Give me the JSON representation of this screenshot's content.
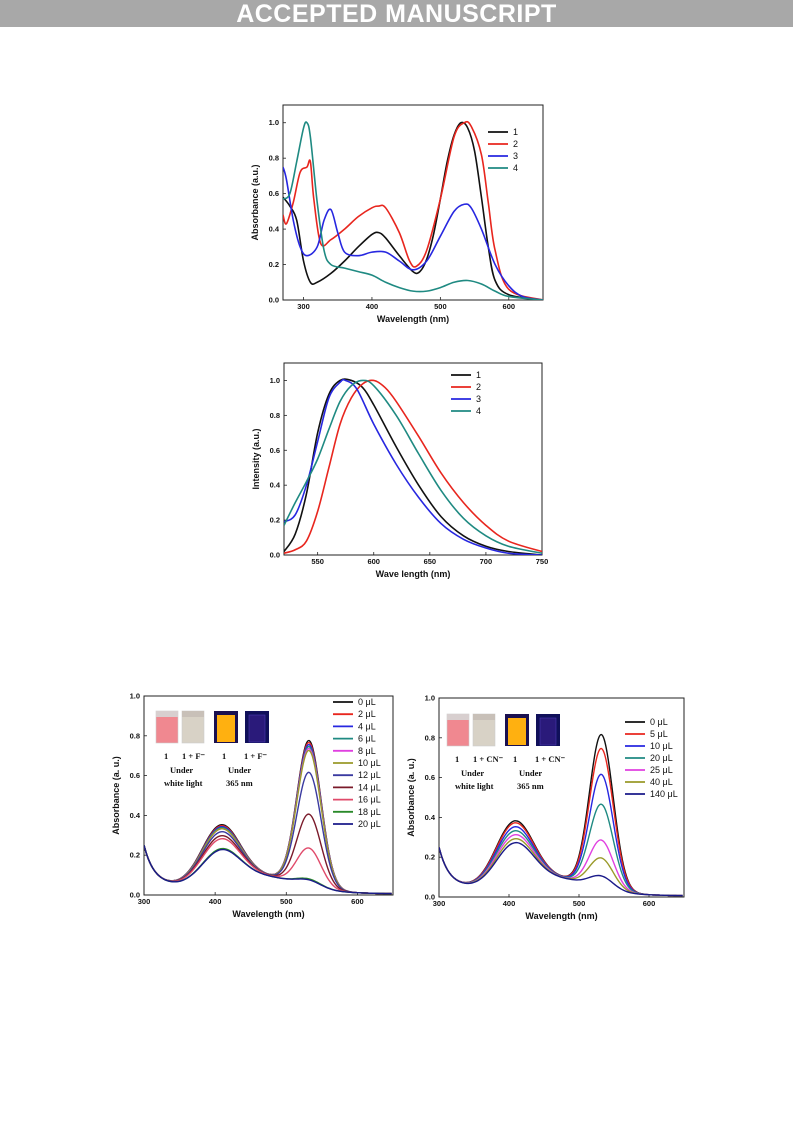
{
  "banner": {
    "title": "ACCEPTED MANUSCRIPT"
  },
  "chart_data": [
    {
      "type": "line",
      "xlabel": "Wavelength (nm)",
      "ylabel": "Absorbance (a.u.)",
      "xlim": [
        270,
        650
      ],
      "ylim": [
        0,
        1.1
      ],
      "xticks": [
        300,
        400,
        500,
        600
      ],
      "yticks": [
        0.0,
        0.2,
        0.4,
        0.6,
        0.8,
        1.0
      ],
      "legend_position": "top-right",
      "series": [
        {
          "name": "1",
          "color": "#111111",
          "points": [
            [
              270,
              0.58
            ],
            [
              280,
              0.53
            ],
            [
              290,
              0.45
            ],
            [
              300,
              0.22
            ],
            [
              310,
              0.1
            ],
            [
              320,
              0.1
            ],
            [
              340,
              0.15
            ],
            [
              360,
              0.22
            ],
            [
              380,
              0.3
            ],
            [
              400,
              0.37
            ],
            [
              410,
              0.38
            ],
            [
              420,
              0.35
            ],
            [
              440,
              0.25
            ],
            [
              460,
              0.16
            ],
            [
              470,
              0.16
            ],
            [
              480,
              0.23
            ],
            [
              490,
              0.37
            ],
            [
              500,
              0.57
            ],
            [
              510,
              0.78
            ],
            [
              520,
              0.93
            ],
            [
              530,
              1.0
            ],
            [
              540,
              0.97
            ],
            [
              550,
              0.84
            ],
            [
              560,
              0.58
            ],
            [
              570,
              0.3
            ],
            [
              580,
              0.11
            ],
            [
              600,
              0.03
            ],
            [
              650,
              0.0
            ]
          ]
        },
        {
          "name": "2",
          "color": "#e8261e",
          "points": [
            [
              270,
              0.48
            ],
            [
              275,
              0.43
            ],
            [
              285,
              0.55
            ],
            [
              295,
              0.72
            ],
            [
              305,
              0.75
            ],
            [
              310,
              0.78
            ],
            [
              315,
              0.57
            ],
            [
              325,
              0.32
            ],
            [
              340,
              0.34
            ],
            [
              360,
              0.4
            ],
            [
              380,
              0.47
            ],
            [
              400,
              0.52
            ],
            [
              410,
              0.53
            ],
            [
              420,
              0.52
            ],
            [
              440,
              0.38
            ],
            [
              455,
              0.22
            ],
            [
              465,
              0.19
            ],
            [
              480,
              0.28
            ],
            [
              500,
              0.57
            ],
            [
              520,
              0.92
            ],
            [
              535,
              1.0
            ],
            [
              545,
              0.98
            ],
            [
              560,
              0.82
            ],
            [
              570,
              0.55
            ],
            [
              580,
              0.28
            ],
            [
              600,
              0.06
            ],
            [
              650,
              0.0
            ]
          ]
        },
        {
          "name": "3",
          "color": "#2727e0",
          "points": [
            [
              270,
              0.75
            ],
            [
              275,
              0.68
            ],
            [
              285,
              0.45
            ],
            [
              295,
              0.3
            ],
            [
              305,
              0.25
            ],
            [
              320,
              0.3
            ],
            [
              330,
              0.45
            ],
            [
              340,
              0.51
            ],
            [
              350,
              0.38
            ],
            [
              360,
              0.27
            ],
            [
              380,
              0.25
            ],
            [
              400,
              0.27
            ],
            [
              420,
              0.27
            ],
            [
              440,
              0.22
            ],
            [
              460,
              0.17
            ],
            [
              480,
              0.22
            ],
            [
              500,
              0.36
            ],
            [
              520,
              0.5
            ],
            [
              535,
              0.54
            ],
            [
              545,
              0.52
            ],
            [
              560,
              0.4
            ],
            [
              580,
              0.2
            ],
            [
              600,
              0.08
            ],
            [
              620,
              0.02
            ],
            [
              650,
              0.0
            ]
          ]
        },
        {
          "name": "4",
          "color": "#1f8a82",
          "points": [
            [
              270,
              0.57
            ],
            [
              280,
              0.6
            ],
            [
              290,
              0.78
            ],
            [
              300,
              0.97
            ],
            [
              305,
              1.0
            ],
            [
              310,
              0.92
            ],
            [
              320,
              0.55
            ],
            [
              330,
              0.28
            ],
            [
              340,
              0.2
            ],
            [
              360,
              0.18
            ],
            [
              380,
              0.16
            ],
            [
              400,
              0.14
            ],
            [
              420,
              0.1
            ],
            [
              440,
              0.07
            ],
            [
              460,
              0.05
            ],
            [
              480,
              0.05
            ],
            [
              500,
              0.07
            ],
            [
              520,
              0.1
            ],
            [
              540,
              0.11
            ],
            [
              560,
              0.09
            ],
            [
              580,
              0.05
            ],
            [
              600,
              0.02
            ],
            [
              650,
              0.0
            ]
          ]
        }
      ]
    },
    {
      "type": "line",
      "xlabel": "Wave length (nm)",
      "ylabel": "Intensity (a.u.)",
      "xlim": [
        520,
        750
      ],
      "ylim": [
        0,
        1.1
      ],
      "xticks": [
        550,
        600,
        650,
        700,
        750
      ],
      "yticks": [
        0.0,
        0.2,
        0.4,
        0.6,
        0.8,
        1.0
      ],
      "legend_position": "top-right",
      "series": [
        {
          "name": "1",
          "color": "#111111",
          "points": [
            [
              520,
              0.02
            ],
            [
              530,
              0.12
            ],
            [
              540,
              0.35
            ],
            [
              550,
              0.7
            ],
            [
              560,
              0.92
            ],
            [
              570,
              1.0
            ],
            [
              580,
              1.0
            ],
            [
              590,
              0.96
            ],
            [
              600,
              0.86
            ],
            [
              620,
              0.62
            ],
            [
              640,
              0.4
            ],
            [
              660,
              0.22
            ],
            [
              680,
              0.11
            ],
            [
              700,
              0.05
            ],
            [
              720,
              0.02
            ],
            [
              750,
              0.0
            ]
          ]
        },
        {
          "name": "2",
          "color": "#e8261e",
          "points": [
            [
              520,
              0.01
            ],
            [
              530,
              0.03
            ],
            [
              540,
              0.08
            ],
            [
              550,
              0.25
            ],
            [
              560,
              0.5
            ],
            [
              570,
              0.75
            ],
            [
              580,
              0.9
            ],
            [
              590,
              0.98
            ],
            [
              600,
              1.0
            ],
            [
              610,
              0.96
            ],
            [
              620,
              0.88
            ],
            [
              640,
              0.68
            ],
            [
              660,
              0.47
            ],
            [
              680,
              0.3
            ],
            [
              700,
              0.17
            ],
            [
              720,
              0.08
            ],
            [
              750,
              0.02
            ]
          ]
        },
        {
          "name": "3",
          "color": "#2727e0",
          "points": [
            [
              520,
              0.19
            ],
            [
              530,
              0.23
            ],
            [
              540,
              0.4
            ],
            [
              550,
              0.65
            ],
            [
              560,
              0.9
            ],
            [
              570,
              0.99
            ],
            [
              575,
              1.0
            ],
            [
              585,
              0.95
            ],
            [
              600,
              0.75
            ],
            [
              620,
              0.52
            ],
            [
              640,
              0.33
            ],
            [
              660,
              0.18
            ],
            [
              680,
              0.09
            ],
            [
              700,
              0.04
            ],
            [
              720,
              0.01
            ],
            [
              750,
              0.0
            ]
          ]
        },
        {
          "name": "4",
          "color": "#1f8a82",
          "points": [
            [
              520,
              0.17
            ],
            [
              530,
              0.3
            ],
            [
              540,
              0.42
            ],
            [
              550,
              0.55
            ],
            [
              560,
              0.72
            ],
            [
              570,
              0.88
            ],
            [
              580,
              0.97
            ],
            [
              590,
              1.0
            ],
            [
              600,
              0.97
            ],
            [
              620,
              0.8
            ],
            [
              640,
              0.58
            ],
            [
              660,
              0.37
            ],
            [
              680,
              0.21
            ],
            [
              700,
              0.11
            ],
            [
              720,
              0.05
            ],
            [
              750,
              0.01
            ]
          ]
        }
      ]
    },
    {
      "type": "line",
      "xlabel": "Wavelength (nm)",
      "ylabel": "Absorbance (a. u.)",
      "xlim": [
        300,
        650
      ],
      "ylim": [
        0,
        1.0
      ],
      "xticks": [
        300,
        400,
        500,
        600
      ],
      "yticks": [
        0.0,
        0.2,
        0.4,
        0.6,
        0.8,
        1.0
      ],
      "legend_position": "right",
      "inset_labels": {
        "a": "1",
        "b": "1 + F⁻",
        "c": "1",
        "d": "1 + F⁻",
        "e": "Under",
        "f": "white light",
        "g": "Under",
        "h": "365 nm"
      },
      "series": [
        {
          "name": "0 μL",
          "color": "#111111",
          "band": 0.29,
          "peak": 0.73
        },
        {
          "name": "2 μL",
          "color": "#e8261e",
          "band": 0.285,
          "peak": 0.72
        },
        {
          "name": "4 μL",
          "color": "#2727e0",
          "band": 0.28,
          "peak": 0.71
        },
        {
          "name": "6 μL",
          "color": "#1f8a82",
          "band": 0.275,
          "peak": 0.7
        },
        {
          "name": "8 μL",
          "color": "#e040e0",
          "band": 0.27,
          "peak": 0.69
        },
        {
          "name": "10 μL",
          "color": "#9a9a2a",
          "band": 0.27,
          "peak": 0.68
        },
        {
          "name": "12 μL",
          "color": "#3a3aa0",
          "band": 0.255,
          "peak": 0.57
        },
        {
          "name": "14 μL",
          "color": "#7a1a2a",
          "band": 0.235,
          "peak": 0.36
        },
        {
          "name": "16 μL",
          "color": "#e04a6a",
          "band": 0.22,
          "peak": 0.19
        },
        {
          "name": "18 μL",
          "color": "#2a8a2a",
          "band": 0.17,
          "peak": 0.035
        },
        {
          "name": "20 μL",
          "color": "#1a1a8a",
          "band": 0.165,
          "peak": 0.03
        }
      ]
    },
    {
      "type": "line",
      "xlabel": "Wavelength (nm)",
      "ylabel": "Absorbance (a. u.)",
      "xlim": [
        300,
        650
      ],
      "ylim": [
        0,
        1.0
      ],
      "xticks": [
        300,
        400,
        500,
        600
      ],
      "yticks": [
        0.0,
        0.2,
        0.4,
        0.6,
        0.8,
        1.0
      ],
      "legend_position": "right",
      "inset_labels": {
        "a": "1",
        "b": "1 + CN⁻",
        "c": "1",
        "d": "1 + CN⁻",
        "e": "Under",
        "f": "white light",
        "g": "Under",
        "h": "365 nm"
      },
      "series": [
        {
          "name": "0 μL",
          "color": "#111111",
          "band": 0.32,
          "peak": 0.77
        },
        {
          "name": "5 μL",
          "color": "#e8261e",
          "band": 0.31,
          "peak": 0.7
        },
        {
          "name": "10 μL",
          "color": "#2727e0",
          "band": 0.29,
          "peak": 0.57
        },
        {
          "name": "20 μL",
          "color": "#1f8a82",
          "band": 0.27,
          "peak": 0.42
        },
        {
          "name": "25 μL",
          "color": "#e040e0",
          "band": 0.25,
          "peak": 0.24
        },
        {
          "name": "40 μL",
          "color": "#9a9a2a",
          "band": 0.23,
          "peak": 0.15
        },
        {
          "name": "140 μL",
          "color": "#1a1a8a",
          "band": 0.21,
          "peak": 0.06
        }
      ]
    }
  ]
}
